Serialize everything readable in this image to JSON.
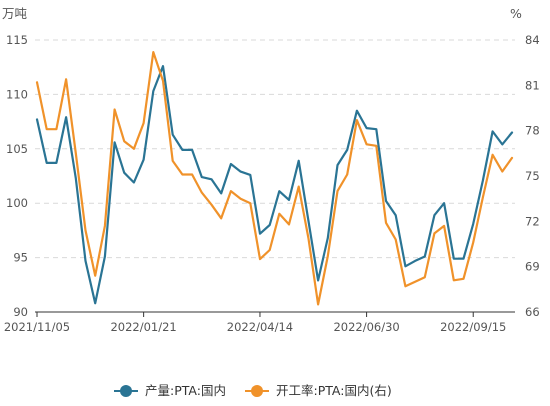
{
  "chart_data": {
    "type": "line",
    "left_unit": "万吨",
    "right_unit": "%",
    "left_ylim": [
      90,
      115
    ],
    "left_ticks": [
      90,
      95,
      100,
      105,
      110,
      115
    ],
    "right_ylim": [
      66,
      84
    ],
    "right_ticks": [
      66,
      69,
      72,
      75,
      78,
      81,
      84
    ],
    "x_tick_labels": [
      "2021/11/05",
      "2022/01/21",
      "2022/04/14",
      "2022/06/30",
      "2022/09/15"
    ],
    "x_tick_indices": [
      0,
      11,
      23,
      34,
      45
    ],
    "grid": "horizontal-dashed",
    "legend_position": "bottom",
    "series": [
      {
        "name": "产量:PTA:国内",
        "axis": "left",
        "color": "#2a7494",
        "values": [
          107.7,
          103.7,
          103.7,
          107.9,
          102.3,
          94.7,
          90.8,
          95.1,
          105.6,
          102.8,
          101.9,
          104.0,
          110.3,
          112.6,
          106.3,
          104.9,
          104.9,
          102.4,
          102.2,
          100.9,
          103.6,
          102.9,
          102.6,
          97.2,
          98.0,
          101.1,
          100.3,
          103.9,
          98.4,
          92.9,
          96.8,
          103.5,
          104.9,
          108.5,
          106.9,
          106.8,
          100.2,
          98.9,
          94.2,
          94.7,
          95.1,
          98.9,
          100.0,
          94.9,
          94.9,
          98.1,
          102.1,
          106.6,
          105.4,
          106.5
        ]
      },
      {
        "name": "开工率:PTA:国内(右)",
        "axis": "right",
        "color": "#f0922a",
        "values": [
          81.2,
          78.1,
          78.1,
          81.4,
          76.5,
          71.4,
          68.4,
          71.7,
          79.4,
          77.3,
          76.8,
          78.5,
          83.2,
          81.3,
          76.0,
          75.1,
          75.1,
          73.9,
          73.1,
          72.2,
          74.0,
          73.5,
          73.2,
          69.5,
          70.1,
          72.5,
          71.8,
          74.3,
          70.9,
          66.5,
          69.7,
          74.0,
          75.1,
          78.7,
          77.1,
          77.0,
          71.9,
          70.8,
          67.7,
          68.0,
          68.3,
          71.2,
          71.7,
          68.1,
          68.2,
          70.6,
          73.6,
          76.4,
          75.3,
          76.2
        ]
      }
    ]
  }
}
